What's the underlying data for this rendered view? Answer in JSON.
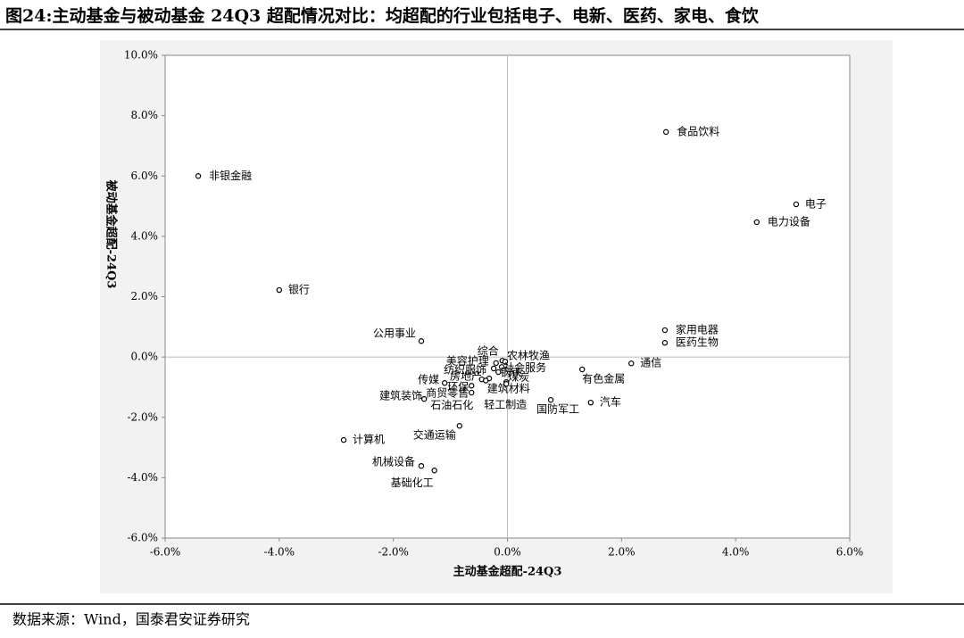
{
  "header": {
    "title": "图24:主动基金与被动基金 24Q3 超配情况对比：均超配的行业包括电子、电新、医药、家电、食饮"
  },
  "footer": {
    "source": "数据来源：Wind，国泰君安证券研究"
  },
  "chart_data": {
    "type": "scatter",
    "x_label": "主动基金超配-24Q3",
    "y_label": "被动基金超配-24Q3",
    "xlim": [
      -6,
      6
    ],
    "ylim": [
      -6,
      10
    ],
    "xticks": [
      {
        "value": -6,
        "label": "-6.0%"
      },
      {
        "value": -4,
        "label": "-4.0%"
      },
      {
        "value": -2,
        "label": "-2.0%"
      },
      {
        "value": 0,
        "label": "0.0%"
      },
      {
        "value": 2,
        "label": "2.0%"
      },
      {
        "value": 4,
        "label": "4.0%"
      },
      {
        "value": 6,
        "label": "6.0%"
      }
    ],
    "yticks": [
      {
        "value": -6,
        "label": "-6.0%"
      },
      {
        "value": -4,
        "label": "-4.0%"
      },
      {
        "value": -2,
        "label": "-2.0%"
      },
      {
        "value": 0,
        "label": "0.0%"
      },
      {
        "value": 2,
        "label": "2.0%"
      },
      {
        "value": 4,
        "label": "4.0%"
      },
      {
        "value": 6,
        "label": "6.0%"
      },
      {
        "value": 8,
        "label": "8.0%"
      },
      {
        "value": 10,
        "label": "10.0%"
      }
    ],
    "color": "#000000",
    "points": [
      {
        "label": "非银金融",
        "x": -5.42,
        "y": 6.0
      },
      {
        "label": "银行",
        "x": -4.0,
        "y": 2.22
      },
      {
        "label": "食品饮料",
        "x": 2.78,
        "y": 7.46
      },
      {
        "label": "电子",
        "x": 5.06,
        "y": 5.06
      },
      {
        "label": "电力设备",
        "x": 4.37,
        "y": 4.47
      },
      {
        "label": "家用电器",
        "x": 2.76,
        "y": 0.89
      },
      {
        "label": "医药生物",
        "x": 2.76,
        "y": 0.47
      },
      {
        "label": "通信",
        "x": 2.17,
        "y": -0.21
      },
      {
        "label": "有色金属",
        "x": 1.31,
        "y": -0.41
      },
      {
        "label": "汽车",
        "x": 1.46,
        "y": -1.51
      },
      {
        "label": "国防军工",
        "x": 0.76,
        "y": -1.42
      },
      {
        "label": "公用事业",
        "x": -1.51,
        "y": 0.53
      },
      {
        "label": "综合",
        "x": -0.09,
        "y": -0.12
      },
      {
        "label": "农林牧渔",
        "x": -0.04,
        "y": -0.15
      },
      {
        "label": "社会服务",
        "x": -0.1,
        "y": -0.33
      },
      {
        "label": "美容护理",
        "x": -0.2,
        "y": -0.2
      },
      {
        "label": "纺织服饰",
        "x": -0.24,
        "y": -0.38
      },
      {
        "label": "房地产",
        "x": -0.32,
        "y": -0.71
      },
      {
        "label": "钢铁",
        "x": -0.16,
        "y": -0.5
      },
      {
        "label": "煤炭",
        "x": -0.02,
        "y": -0.83
      },
      {
        "label": "传媒",
        "x": -1.1,
        "y": -0.86
      },
      {
        "label": "环保",
        "x": -0.63,
        "y": -0.95
      },
      {
        "label": "建筑材料",
        "x": -0.45,
        "y": -0.74
      },
      {
        "label": "建筑装饰",
        "x": -1.46,
        "y": -1.39
      },
      {
        "label": "商贸零售",
        "x": -0.63,
        "y": -1.18
      },
      {
        "label": "石油石化",
        "x": -0.38,
        "y": -0.78
      },
      {
        "label": "轻工制造",
        "x": -0.02,
        "y": -0.89
      },
      {
        "label": "交通运输",
        "x": -0.84,
        "y": -2.28
      },
      {
        "label": "计算机",
        "x": -2.87,
        "y": -2.75
      },
      {
        "label": "机械设备",
        "x": -1.51,
        "y": -3.61
      },
      {
        "label": "基础化工",
        "x": -1.28,
        "y": -3.76
      }
    ]
  }
}
